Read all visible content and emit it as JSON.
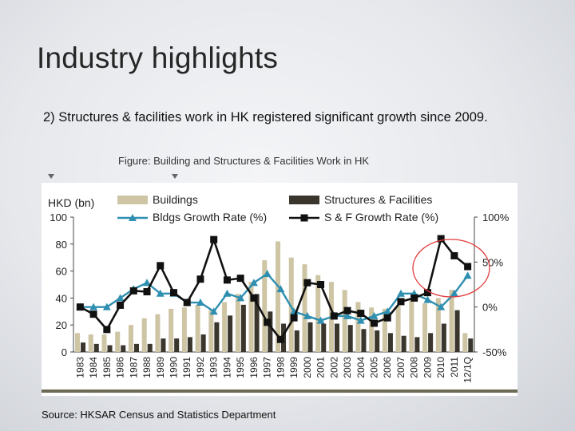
{
  "slide": {
    "title": "Industry highlights",
    "subtitle": "2)  Structures & facilities work in HK registered significant growth since 2009.",
    "caption": "Figure: Building and Structures & Facilities Work in HK",
    "source": "Source: HKSAR Census and Statistics Department"
  },
  "chart_data": {
    "type": "bar",
    "categories": [
      "1983",
      "1984",
      "1985",
      "1986",
      "1987",
      "1988",
      "1989",
      "1990",
      "1991",
      "1992",
      "1993",
      "1994",
      "1995",
      "1996",
      "1997",
      "1998",
      "1999",
      "2000",
      "2001",
      "2002",
      "2003",
      "2004",
      "2005",
      "2006",
      "2007",
      "2008",
      "2009",
      "2010",
      "2011",
      "12/1Q"
    ],
    "left_axis": {
      "label": "HKD (bn)",
      "min": 0,
      "max": 100,
      "ticks": [
        "0",
        "20",
        "40",
        "60",
        "80",
        "100"
      ]
    },
    "right_axis": {
      "min": -50,
      "max": 100,
      "ticks": [
        "-50%",
        "0%",
        "50%",
        "100%"
      ]
    },
    "series": [
      {
        "name": "Buildings",
        "kind": "bar",
        "axis": "left",
        "color": "#cec5a5",
        "values": [
          14,
          13,
          13,
          15,
          20,
          25,
          28,
          32,
          33,
          35,
          31,
          37,
          43,
          52,
          68,
          82,
          70,
          65,
          57,
          52,
          46,
          37,
          33,
          32,
          34,
          38,
          36,
          40,
          46,
          14
        ]
      },
      {
        "name": "Structures & Facilities",
        "kind": "bar",
        "axis": "left",
        "color": "#3a362d",
        "values": [
          7,
          6,
          5,
          5,
          6,
          6,
          10,
          10,
          11,
          13,
          22,
          27,
          35,
          43,
          30,
          21,
          16,
          22,
          21,
          21,
          20,
          17,
          16,
          14,
          12,
          11,
          14,
          21,
          31,
          10
        ]
      },
      {
        "name": "Bldgs Growth Rate (%)",
        "kind": "line",
        "axis": "right",
        "color": "#2f8fb0",
        "values": [
          0,
          0,
          0,
          10,
          20,
          27,
          15,
          15,
          5,
          5,
          -5,
          15,
          10,
          27,
          37,
          20,
          -5,
          -10,
          -15,
          -10,
          -10,
          -15,
          -10,
          -5,
          15,
          15,
          8,
          0,
          15,
          35
        ]
      },
      {
        "name": "S & F Growth Rate (%)",
        "kind": "line",
        "axis": "right",
        "color": "#111111",
        "values": [
          0,
          -8,
          -25,
          2,
          18,
          17,
          46,
          16,
          5,
          31,
          75,
          30,
          32,
          10,
          -17,
          -36,
          -12,
          27,
          25,
          -10,
          -4,
          -7,
          -18,
          -12,
          6,
          10,
          16,
          76,
          57,
          45
        ]
      }
    ],
    "annotations": [
      "red ellipse highlighting 2010–12/1Q S&F growth"
    ]
  }
}
